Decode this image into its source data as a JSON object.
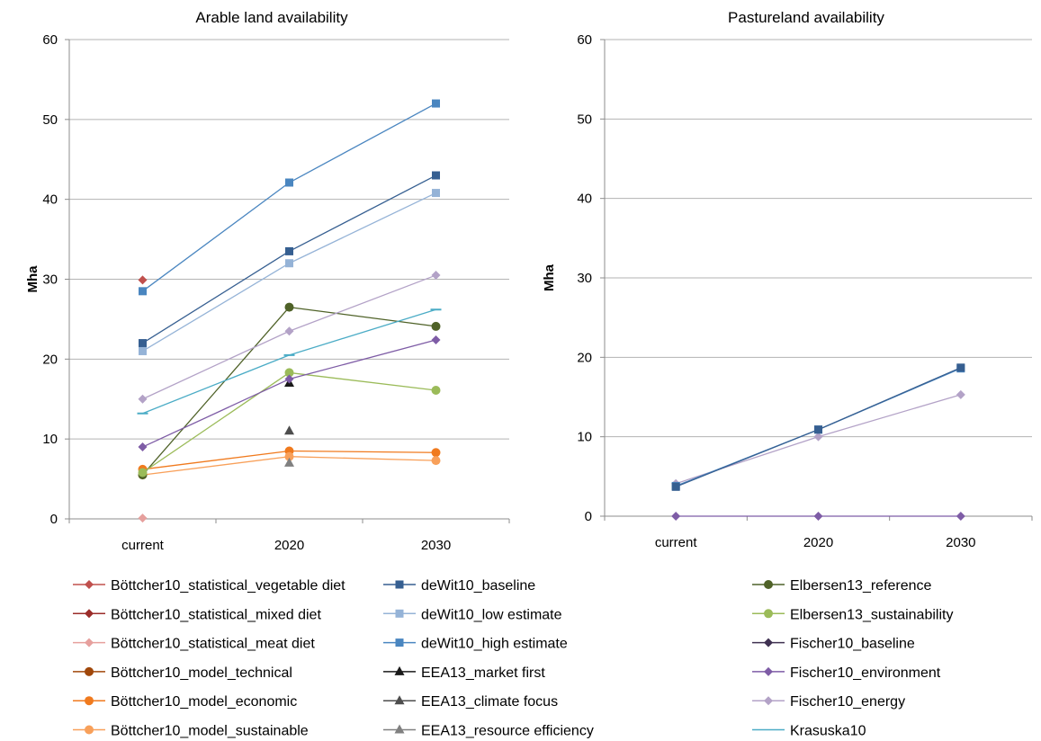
{
  "chart_data": [
    {
      "type": "line",
      "title": "Arable land availability",
      "ylabel": "Mha",
      "xlabel": "",
      "categories": [
        "current",
        "2020",
        "2030"
      ],
      "ylim": [
        0,
        60
      ],
      "yticks": [
        0,
        10,
        20,
        30,
        40,
        50,
        60
      ],
      "grid": "horizontal",
      "series": [
        {
          "name": "Böttcher10_statistical_vegetable diet",
          "values": [
            29.9,
            null,
            null
          ]
        },
        {
          "name": "Böttcher10_statistical_meat diet",
          "values": [
            0.1,
            null,
            null
          ]
        },
        {
          "name": "Böttcher10_model_economic",
          "values": [
            6.2,
            8.5,
            8.3
          ]
        },
        {
          "name": "Böttcher10_model_sustainable",
          "values": [
            5.5,
            7.8,
            7.3
          ]
        },
        {
          "name": "deWit10_baseline",
          "values": [
            22.0,
            33.5,
            43.0
          ]
        },
        {
          "name": "deWit10_low estimate",
          "values": [
            21.0,
            32.0,
            40.8
          ]
        },
        {
          "name": "deWit10_high estimate",
          "values": [
            28.5,
            42.1,
            52.0
          ]
        },
        {
          "name": "EEA13_market first",
          "values": [
            null,
            17.0,
            null
          ]
        },
        {
          "name": "EEA13_climate focus",
          "values": [
            null,
            11.0,
            null
          ]
        },
        {
          "name": "EEA13_resource efficiency",
          "values": [
            null,
            7.0,
            null
          ]
        },
        {
          "name": "Elbersen13_reference",
          "values": [
            5.5,
            26.5,
            24.1
          ]
        },
        {
          "name": "Elbersen13_sustainability",
          "values": [
            5.8,
            18.3,
            16.1
          ]
        },
        {
          "name": "Fischer10_environment",
          "values": [
            9.0,
            17.5,
            22.4
          ]
        },
        {
          "name": "Fischer10_energy",
          "values": [
            15.0,
            23.5,
            30.5
          ]
        },
        {
          "name": "Krasuska10",
          "values": [
            13.2,
            20.5,
            26.2
          ]
        }
      ]
    },
    {
      "type": "line",
      "title": "Pastureland availability",
      "ylabel": "Mha",
      "xlabel": "",
      "categories": [
        "current",
        "2020",
        "2030"
      ],
      "ylim": [
        0,
        60
      ],
      "yticks": [
        0,
        10,
        20,
        30,
        40,
        50,
        60
      ],
      "grid": "horizontal",
      "series": [
        {
          "name": "Fischer10_energy",
          "values": [
            4.1,
            10.0,
            15.3
          ]
        },
        {
          "name": "deWit10_high estimate",
          "values": [
            3.8,
            10.9,
            18.6
          ]
        },
        {
          "name": "deWit10_baseline",
          "values": [
            3.7,
            10.9,
            18.7
          ]
        },
        {
          "name": "Fischer10_environment",
          "values": [
            0.0,
            0.0,
            0.0
          ]
        }
      ]
    }
  ],
  "legend": {
    "placement": "bottom",
    "columns": [
      [
        {
          "label": "Böttcher10_statistical_vegetable diet",
          "color": "#c0504d",
          "marker": "diamond"
        },
        {
          "label": "Böttcher10_statistical_mixed diet",
          "color": "#9b2d2a",
          "marker": "diamond"
        },
        {
          "label": "Böttcher10_statistical_meat diet",
          "color": "#e6a09d",
          "marker": "diamond"
        },
        {
          "label": "Böttcher10_model_technical",
          "color": "#a0470a",
          "marker": "circle"
        },
        {
          "label": "Böttcher10_model_economic",
          "color": "#f07a1e",
          "marker": "circle"
        },
        {
          "label": "Böttcher10_model_sustainable",
          "color": "#f8a05a",
          "marker": "circle"
        }
      ],
      [
        {
          "label": "deWit10_baseline",
          "color": "#365f91",
          "marker": "square"
        },
        {
          "label": "deWit10_low estimate",
          "color": "#95b3d7",
          "marker": "square"
        },
        {
          "label": "deWit10_high estimate",
          "color": "#4a86c0",
          "marker": "square"
        },
        {
          "label": "EEA13_market first",
          "color": "#1a1a1a",
          "marker": "triangle"
        },
        {
          "label": "EEA13_climate focus",
          "color": "#4d4d4d",
          "marker": "triangle"
        },
        {
          "label": "EEA13_resource efficiency",
          "color": "#808080",
          "marker": "triangle"
        }
      ],
      [
        {
          "label": "Elbersen13_reference",
          "color": "#4f6228",
          "marker": "circle"
        },
        {
          "label": "Elbersen13_sustainability",
          "color": "#9bbb59",
          "marker": "circle"
        },
        {
          "label": "Fischer10_baseline",
          "color": "#3f3151",
          "marker": "diamond"
        },
        {
          "label": "Fischer10_environment",
          "color": "#7e5ca6",
          "marker": "diamond"
        },
        {
          "label": "Fischer10_energy",
          "color": "#b3a2c7",
          "marker": "diamond"
        },
        {
          "label": "Krasuska10",
          "color": "#4bacc6",
          "marker": "dash"
        }
      ]
    ]
  }
}
